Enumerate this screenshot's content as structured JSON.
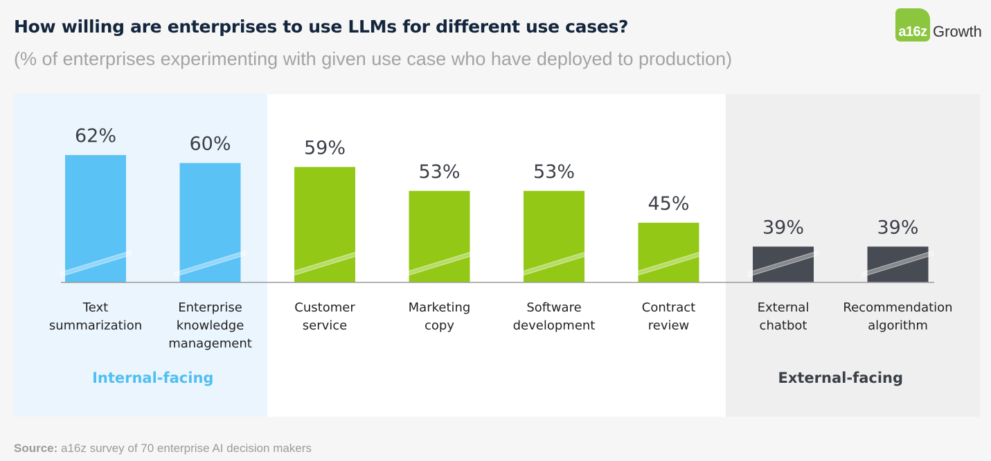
{
  "header": {
    "title": "How willing are enterprises to use LLMs for different use cases?",
    "subtitle": "(% of enterprises experimenting with given use case who have deployed to production)"
  },
  "logo": {
    "badge": "a16z",
    "text": "Growth"
  },
  "colors": {
    "internal": "#5bc2f6",
    "middle": "#93c916",
    "external": "#474b53",
    "internal_label": "#4fbff3",
    "external_label": "#3b3f46"
  },
  "chart_data": {
    "type": "bar",
    "title": "How willing are enterprises to use LLMs for different use cases?",
    "subtitle": "(% of enterprises experimenting with given use case who have deployed to production)",
    "xlabel": "",
    "ylabel": "",
    "unit": "%",
    "ylim": [
      30,
      62
    ],
    "axis_break": true,
    "categories": [
      [
        "Text",
        "summarization"
      ],
      [
        "Enterprise",
        "knowledge",
        "management"
      ],
      [
        "Customer",
        "service"
      ],
      [
        "Marketing",
        "copy"
      ],
      [
        "Software",
        "development"
      ],
      [
        "Contract",
        "review"
      ],
      [
        "External",
        "chatbot"
      ],
      [
        "Recommendation",
        "algorithm"
      ]
    ],
    "values": [
      62,
      60,
      59,
      53,
      53,
      45,
      39,
      39
    ],
    "groups": [
      "internal",
      "internal",
      "middle",
      "middle",
      "middle",
      "middle",
      "external",
      "external"
    ],
    "group_labels": [
      {
        "group": "internal",
        "label": "Internal-facing"
      },
      {
        "group": "external",
        "label": "External-facing"
      }
    ]
  },
  "footer": {
    "source_label": "Source:",
    "source_text": " a16z survey of 70 enterprise AI decision makers"
  }
}
